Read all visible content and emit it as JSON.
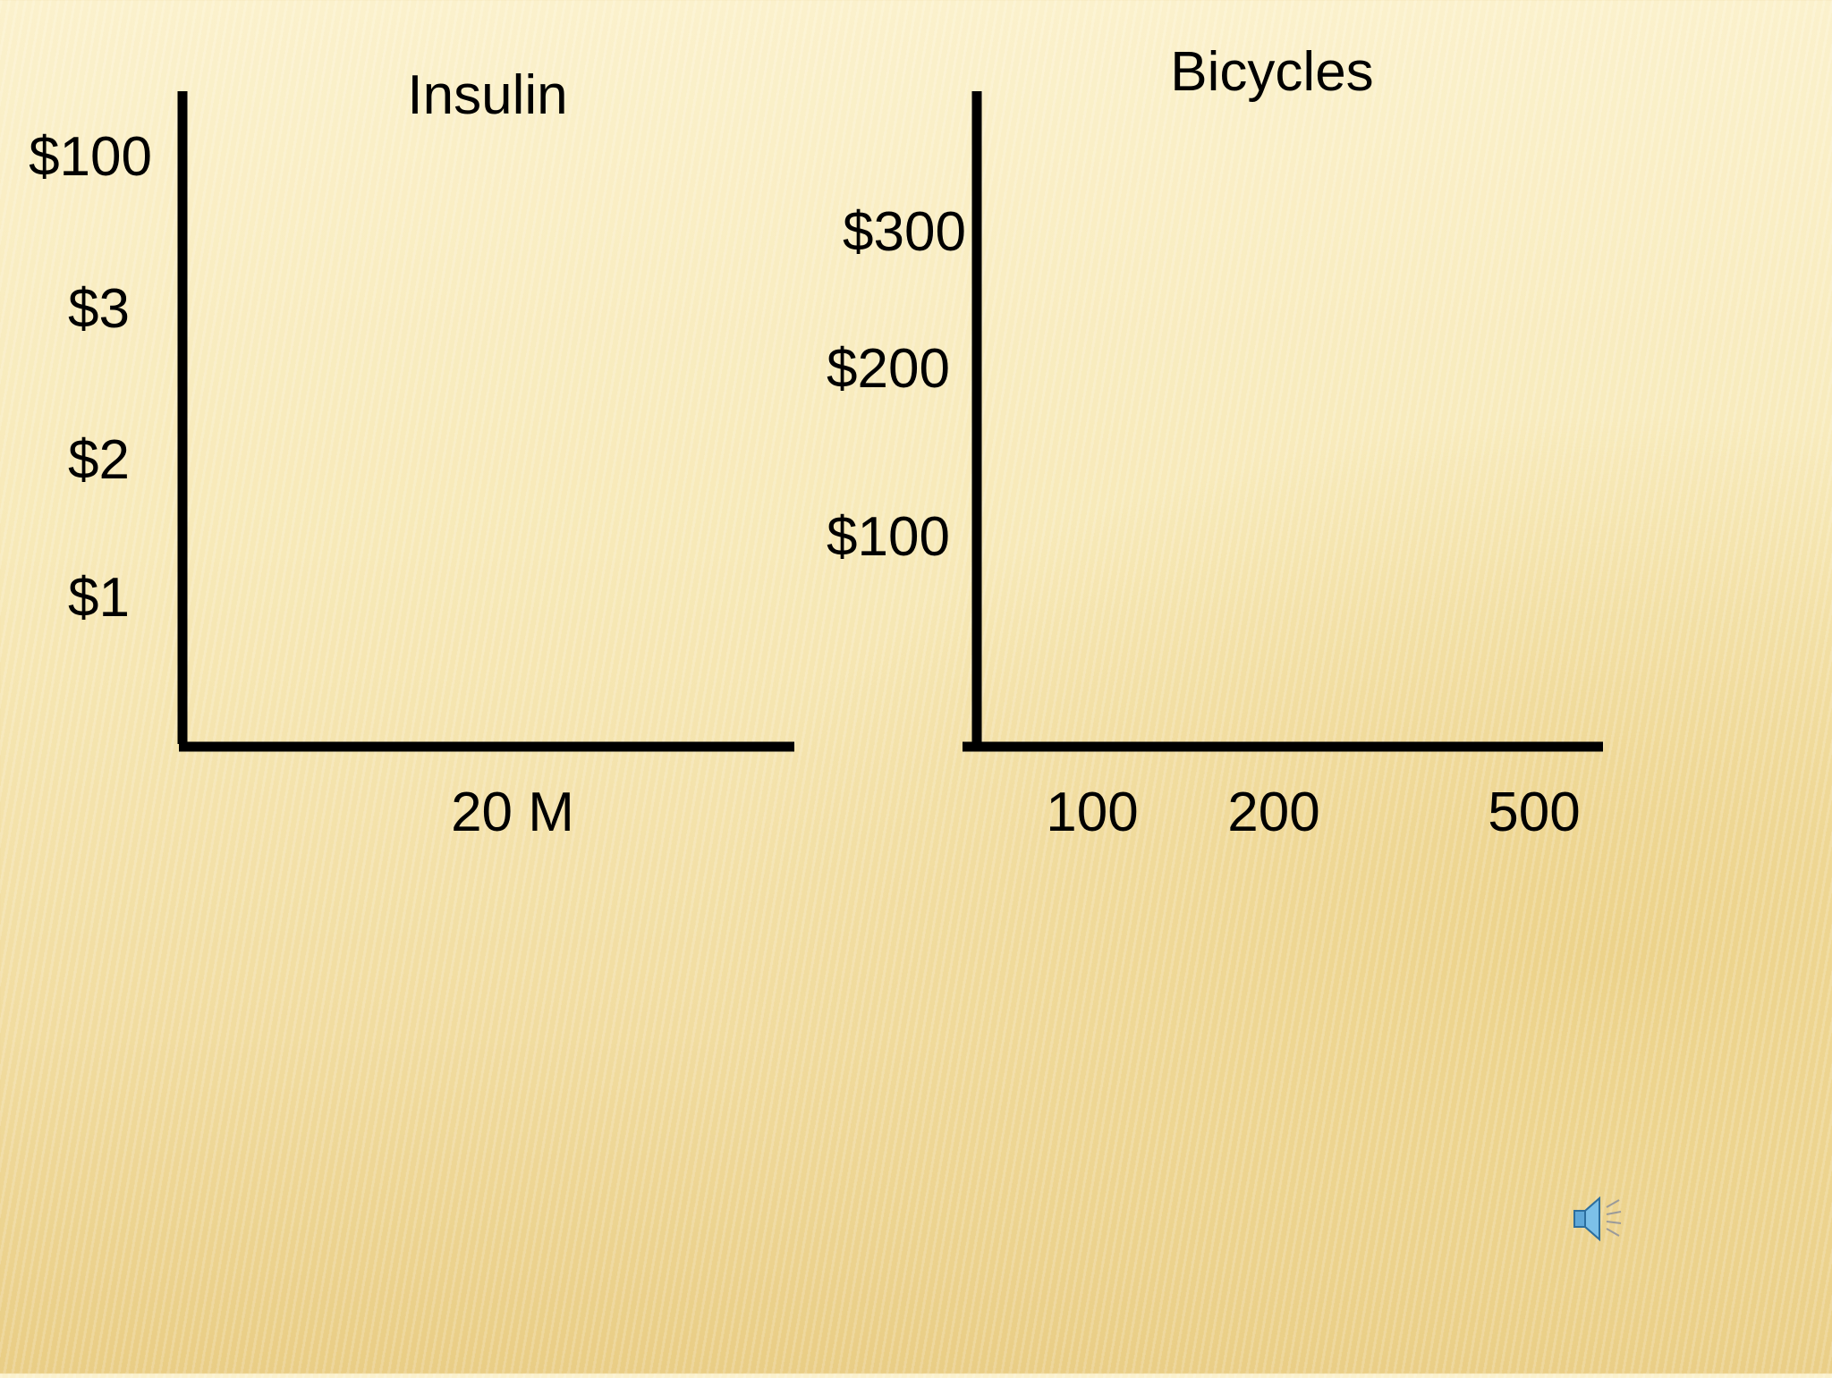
{
  "chart_data": [
    {
      "type": "line",
      "title": "Insulin",
      "y_tick_labels": [
        "$100",
        "$3",
        "$2",
        "$1"
      ],
      "x_tick_labels": [
        "20 M"
      ],
      "series": []
    },
    {
      "type": "line",
      "title": "Bicycles",
      "y_tick_labels": [
        "$300",
        "$200",
        "$100"
      ],
      "x_tick_labels": [
        "100",
        "200",
        "500"
      ],
      "series": []
    }
  ],
  "colors": {
    "axis": "#000000"
  },
  "icons": {
    "audio": "speaker-icon"
  }
}
